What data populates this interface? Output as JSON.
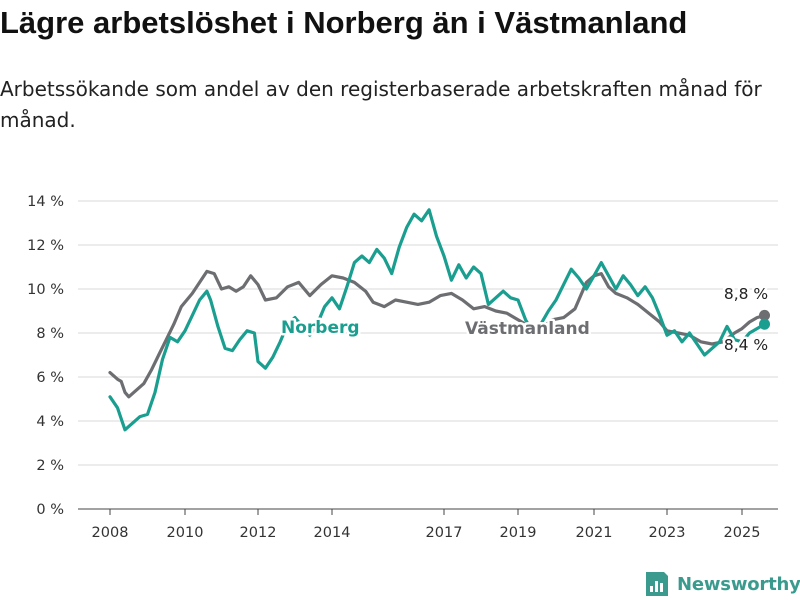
{
  "title": "Lägre arbetslöshet i Norberg än i Västmanland",
  "subtitle": "Arbetssökande som andel av den registerbaserade arbetskraften månad för månad.",
  "brand": {
    "name": "Newsworthy",
    "icon": "newsworthy-logo-icon",
    "color": "#3a9a8e"
  },
  "chart_data": {
    "type": "line",
    "title": "Lägre arbetslöshet i Norberg än i Västmanland",
    "subtitle": "Arbetssökande som andel av den registerbaserade arbetskraften månad för månad.",
    "xlabel": "",
    "ylabel": "",
    "x_ticks": [
      "2008",
      "2010",
      "2012",
      "2014",
      "2017",
      "2019",
      "2021",
      "2023",
      "2025"
    ],
    "y_ticks": [
      "0 %",
      "2 %",
      "4 %",
      "6 %",
      "8 %",
      "10 %",
      "12 %",
      "14 %"
    ],
    "y_tick_values": [
      0,
      2,
      4,
      6,
      8,
      10,
      12,
      14
    ],
    "ylim": [
      0,
      14
    ],
    "xlim": [
      2007.5,
      2026.0
    ],
    "grid": "horizontal",
    "legend": "direct labels",
    "series": [
      {
        "name": "Västmanland",
        "color": "#6d6e71",
        "end_label": "8,8 %",
        "points": [
          [
            2008.0,
            6.2
          ],
          [
            2008.2,
            5.9
          ],
          [
            2008.3,
            5.8
          ],
          [
            2008.4,
            5.3
          ],
          [
            2008.5,
            5.1
          ],
          [
            2008.7,
            5.4
          ],
          [
            2008.9,
            5.7
          ],
          [
            2009.1,
            6.3
          ],
          [
            2009.3,
            7.0
          ],
          [
            2009.5,
            7.7
          ],
          [
            2009.7,
            8.4
          ],
          [
            2009.9,
            9.2
          ],
          [
            2010.2,
            9.8
          ],
          [
            2010.4,
            10.3
          ],
          [
            2010.6,
            10.8
          ],
          [
            2010.8,
            10.7
          ],
          [
            2011.0,
            10.0
          ],
          [
            2011.2,
            10.1
          ],
          [
            2011.4,
            9.9
          ],
          [
            2011.6,
            10.1
          ],
          [
            2011.8,
            10.6
          ],
          [
            2012.0,
            10.2
          ],
          [
            2012.2,
            9.5
          ],
          [
            2012.5,
            9.6
          ],
          [
            2012.8,
            10.1
          ],
          [
            2013.1,
            10.3
          ],
          [
            2013.4,
            9.7
          ],
          [
            2013.7,
            10.2
          ],
          [
            2014.0,
            10.6
          ],
          [
            2014.3,
            10.5
          ],
          [
            2014.6,
            10.3
          ],
          [
            2014.9,
            9.9
          ],
          [
            2015.1,
            9.4
          ],
          [
            2015.4,
            9.2
          ],
          [
            2015.7,
            9.5
          ],
          [
            2016.0,
            9.4
          ],
          [
            2016.3,
            9.3
          ],
          [
            2016.6,
            9.4
          ],
          [
            2016.9,
            9.7
          ],
          [
            2017.2,
            9.8
          ],
          [
            2017.5,
            9.5
          ],
          [
            2017.8,
            9.1
          ],
          [
            2018.1,
            9.2
          ],
          [
            2018.4,
            9.0
          ],
          [
            2018.7,
            8.9
          ],
          [
            2019.0,
            8.6
          ],
          [
            2019.3,
            8.3
          ],
          [
            2019.6,
            8.2
          ],
          [
            2019.9,
            8.6
          ],
          [
            2020.2,
            8.7
          ],
          [
            2020.5,
            9.1
          ],
          [
            2020.8,
            10.3
          ],
          [
            2021.0,
            10.6
          ],
          [
            2021.2,
            10.7
          ],
          [
            2021.4,
            10.1
          ],
          [
            2021.6,
            9.8
          ],
          [
            2021.9,
            9.6
          ],
          [
            2022.2,
            9.3
          ],
          [
            2022.5,
            8.9
          ],
          [
            2022.8,
            8.5
          ],
          [
            2023.0,
            8.1
          ],
          [
            2023.3,
            8.0
          ],
          [
            2023.6,
            7.9
          ],
          [
            2023.9,
            7.6
          ],
          [
            2024.2,
            7.5
          ],
          [
            2024.5,
            7.6
          ],
          [
            2024.8,
            8.0
          ],
          [
            2025.0,
            8.2
          ],
          [
            2025.2,
            8.5
          ],
          [
            2025.4,
            8.7
          ],
          [
            2025.6,
            8.8
          ]
        ]
      },
      {
        "name": "Norberg",
        "color": "#1a9e90",
        "end_label": "8,4 %",
        "points": [
          [
            2008.0,
            5.1
          ],
          [
            2008.2,
            4.6
          ],
          [
            2008.3,
            4.1
          ],
          [
            2008.4,
            3.6
          ],
          [
            2008.6,
            3.9
          ],
          [
            2008.8,
            4.2
          ],
          [
            2009.0,
            4.3
          ],
          [
            2009.2,
            5.3
          ],
          [
            2009.4,
            6.8
          ],
          [
            2009.6,
            7.8
          ],
          [
            2009.8,
            7.6
          ],
          [
            2010.0,
            8.1
          ],
          [
            2010.2,
            8.8
          ],
          [
            2010.4,
            9.5
          ],
          [
            2010.6,
            9.9
          ],
          [
            2010.7,
            9.5
          ],
          [
            2010.9,
            8.3
          ],
          [
            2011.1,
            7.3
          ],
          [
            2011.3,
            7.2
          ],
          [
            2011.5,
            7.7
          ],
          [
            2011.7,
            8.1
          ],
          [
            2011.9,
            8.0
          ],
          [
            2012.0,
            6.7
          ],
          [
            2012.2,
            6.4
          ],
          [
            2012.4,
            6.9
          ],
          [
            2012.6,
            7.6
          ],
          [
            2012.8,
            8.4
          ],
          [
            2013.0,
            8.7
          ],
          [
            2013.2,
            8.3
          ],
          [
            2013.4,
            7.9
          ],
          [
            2013.6,
            8.4
          ],
          [
            2013.8,
            9.2
          ],
          [
            2014.0,
            9.6
          ],
          [
            2014.2,
            9.1
          ],
          [
            2014.4,
            10.1
          ],
          [
            2014.6,
            11.2
          ],
          [
            2014.8,
            11.5
          ],
          [
            2015.0,
            11.2
          ],
          [
            2015.2,
            11.8
          ],
          [
            2015.4,
            11.4
          ],
          [
            2015.6,
            10.7
          ],
          [
            2015.8,
            11.9
          ],
          [
            2016.0,
            12.8
          ],
          [
            2016.2,
            13.4
          ],
          [
            2016.4,
            13.1
          ],
          [
            2016.6,
            13.6
          ],
          [
            2016.8,
            12.4
          ],
          [
            2017.0,
            11.5
          ],
          [
            2017.2,
            10.4
          ],
          [
            2017.4,
            11.1
          ],
          [
            2017.6,
            10.5
          ],
          [
            2017.8,
            11.0
          ],
          [
            2018.0,
            10.7
          ],
          [
            2018.2,
            9.3
          ],
          [
            2018.4,
            9.6
          ],
          [
            2018.6,
            9.9
          ],
          [
            2018.8,
            9.6
          ],
          [
            2019.0,
            9.5
          ],
          [
            2019.2,
            8.6
          ],
          [
            2019.4,
            8.0
          ],
          [
            2019.6,
            8.4
          ],
          [
            2019.8,
            9.0
          ],
          [
            2020.0,
            9.5
          ],
          [
            2020.2,
            10.2
          ],
          [
            2020.4,
            10.9
          ],
          [
            2020.6,
            10.5
          ],
          [
            2020.8,
            10.0
          ],
          [
            2021.0,
            10.6
          ],
          [
            2021.2,
            11.2
          ],
          [
            2021.4,
            10.6
          ],
          [
            2021.6,
            10.0
          ],
          [
            2021.8,
            10.6
          ],
          [
            2022.0,
            10.2
          ],
          [
            2022.2,
            9.7
          ],
          [
            2022.4,
            10.1
          ],
          [
            2022.6,
            9.6
          ],
          [
            2022.8,
            8.8
          ],
          [
            2023.0,
            7.9
          ],
          [
            2023.2,
            8.1
          ],
          [
            2023.4,
            7.6
          ],
          [
            2023.6,
            8.0
          ],
          [
            2023.8,
            7.5
          ],
          [
            2024.0,
            7.0
          ],
          [
            2024.2,
            7.3
          ],
          [
            2024.4,
            7.6
          ],
          [
            2024.6,
            8.3
          ],
          [
            2024.8,
            7.7
          ],
          [
            2025.0,
            7.6
          ],
          [
            2025.2,
            8.0
          ],
          [
            2025.4,
            8.2
          ],
          [
            2025.6,
            8.4
          ]
        ]
      }
    ]
  }
}
